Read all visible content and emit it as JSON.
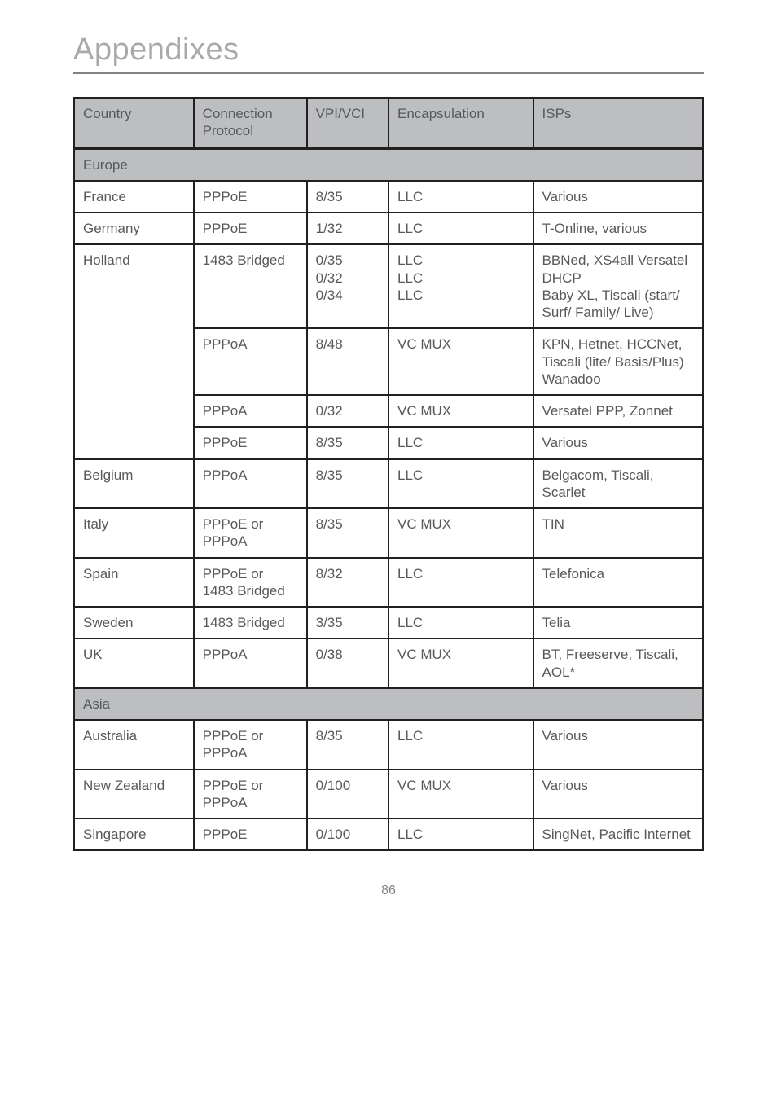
{
  "page_title": "Appendixes",
  "page_number": "86",
  "headers": {
    "country": "Country",
    "protocol": "Connection Protocol",
    "vpivci": "VPI/VCI",
    "encap": "Encapsulation",
    "isps": "ISPs"
  },
  "sections": [
    {
      "label": "Europe",
      "rows": [
        {
          "country": "France",
          "protocol": "PPPoE",
          "vpivci": "8/35",
          "encap": "LLC",
          "isps": "Various",
          "span": 1
        },
        {
          "country": "Germany",
          "protocol": "PPPoE",
          "vpivci": "1/32",
          "encap": "LLC",
          "isps": "T-Online, various",
          "span": 1
        },
        {
          "country": "Holland",
          "protocol": "1483 Bridged",
          "vpivci": "0/35\n0/32\n0/34",
          "encap": "LLC\nLLC\nLLC",
          "isps": "BBNed, XS4all Versatel DHCP\nBaby XL, Tiscali (start/ Surf/ Family/ Live)",
          "span": 4
        },
        {
          "protocol": "PPPoA",
          "vpivci": "8/48",
          "encap": "VC MUX",
          "isps": "KPN, Hetnet, HCCNet, Tiscali (lite/ Basis/Plus) Wanadoo"
        },
        {
          "protocol": "PPPoA",
          "vpivci": "0/32",
          "encap": "VC MUX",
          "isps": "Versatel PPP, Zonnet"
        },
        {
          "protocol": "PPPoE",
          "vpivci": "8/35",
          "encap": "LLC",
          "isps": "Various"
        },
        {
          "country": "Belgium",
          "protocol": "PPPoA",
          "vpivci": "8/35",
          "encap": "LLC",
          "isps": "Belgacom, Tiscali, Scarlet",
          "span": 1
        },
        {
          "country": "Italy",
          "protocol": "PPPoE or PPPoA",
          "vpivci": "8/35",
          "encap": "VC MUX",
          "isps": "TIN",
          "span": 1
        },
        {
          "country": "Spain",
          "protocol": "PPPoE or\n1483 Bridged",
          "vpivci": "8/32",
          "encap": "LLC",
          "isps": "Telefonica",
          "span": 1
        },
        {
          "country": "Sweden",
          "protocol": "1483 Bridged",
          "vpivci": "3/35",
          "encap": "LLC",
          "isps": "Telia",
          "span": 1
        },
        {
          "country": "UK",
          "protocol": "PPPoA",
          "vpivci": "0/38",
          "encap": "VC MUX",
          "isps": "BT, Freeserve, Tiscali, AOL*",
          "span": 1
        }
      ]
    },
    {
      "label": "Asia",
      "rows": [
        {
          "country": "Australia",
          "protocol": "PPPoE or PPPoA",
          "vpivci": "8/35",
          "encap": "LLC",
          "isps": "Various",
          "span": 1
        },
        {
          "country": "New Zealand",
          "protocol": "PPPoE or PPPoA",
          "vpivci": "0/100",
          "encap": "VC MUX",
          "isps": "Various",
          "span": 1
        },
        {
          "country": "Singapore",
          "protocol": "PPPoE",
          "vpivci": "0/100",
          "encap": "LLC",
          "isps": "SingNet, Pacific Internet",
          "span": 1
        }
      ]
    }
  ]
}
